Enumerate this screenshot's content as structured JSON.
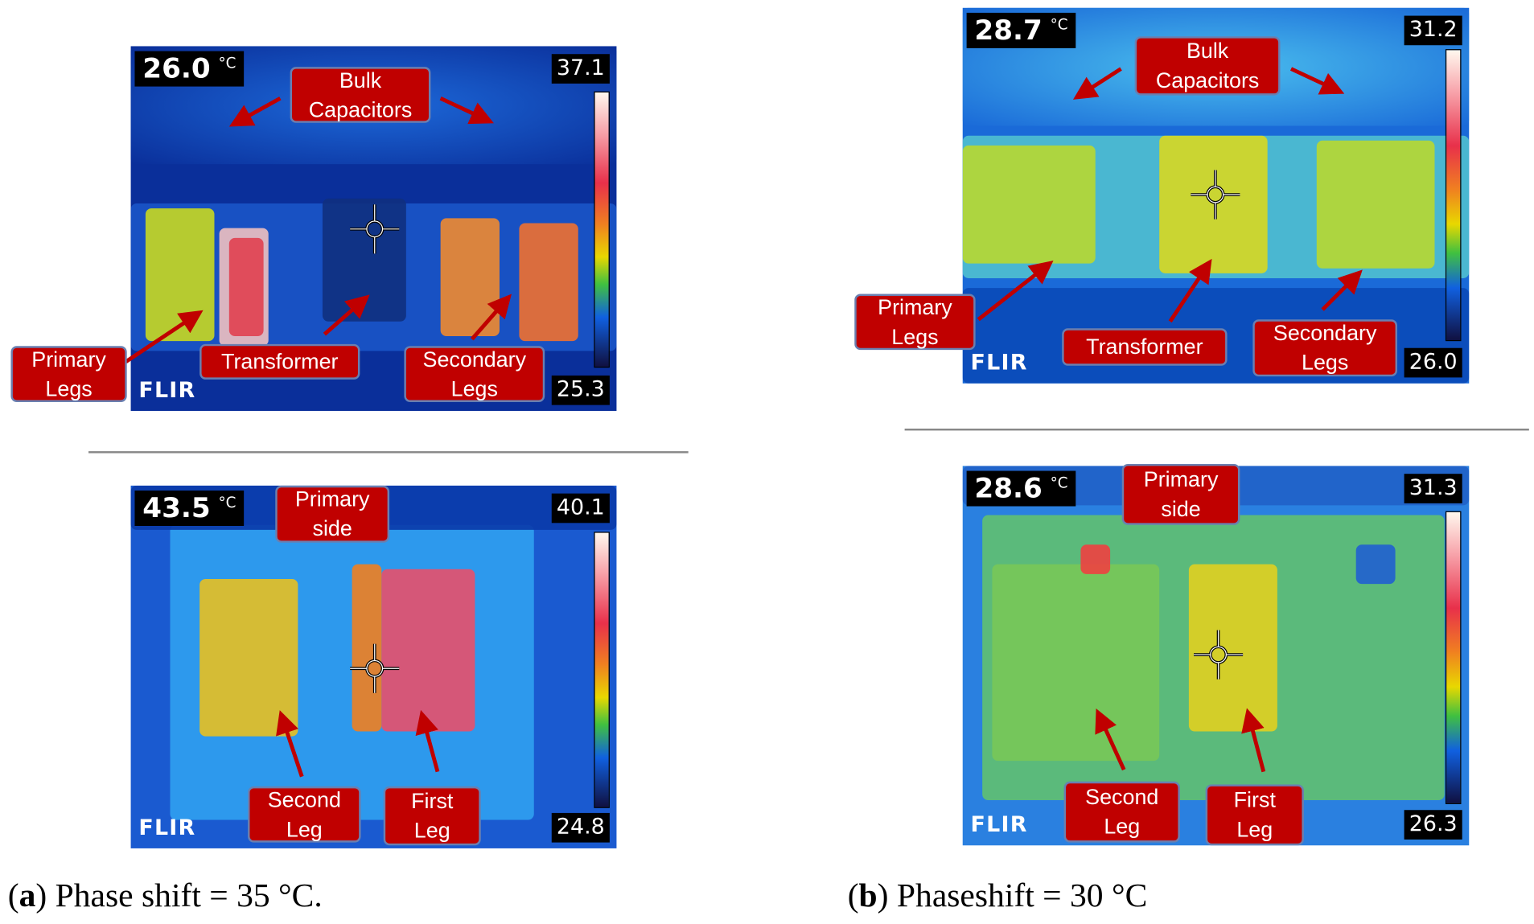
{
  "panels": [
    {
      "spot": "26.0",
      "unit": "°C",
      "max": "37.1",
      "min": "25.3",
      "brand": "FLIR",
      "labels": [
        {
          "lines": [
            "Bulk",
            "Capacitors"
          ]
        },
        {
          "lines": [
            "Primary",
            "Legs"
          ]
        },
        {
          "lines": [
            "Transformer"
          ]
        },
        {
          "lines": [
            "Secondary",
            "Legs"
          ]
        }
      ]
    },
    {
      "spot": "43.5",
      "unit": "°C",
      "max": "40.1",
      "min": "24.8",
      "brand": "FLIR",
      "labels": [
        {
          "lines": [
            "Primary",
            "side"
          ]
        },
        {
          "lines": [
            "Second",
            "Leg"
          ]
        },
        {
          "lines": [
            "First",
            "Leg"
          ]
        }
      ]
    },
    {
      "spot": "28.7",
      "unit": "°C",
      "max": "31.2",
      "min": "26.0",
      "brand": "FLIR",
      "labels": [
        {
          "lines": [
            "Bulk",
            "Capacitors"
          ]
        },
        {
          "lines": [
            "Primary",
            "Legs"
          ]
        },
        {
          "lines": [
            "Transformer"
          ]
        },
        {
          "lines": [
            "Secondary",
            "Legs"
          ]
        }
      ]
    },
    {
      "spot": "28.6",
      "unit": "°C",
      "max": "31.3",
      "min": "26.3",
      "brand": "FLIR",
      "labels": [
        {
          "lines": [
            "Primary",
            "side"
          ]
        },
        {
          "lines": [
            "Second",
            "Leg"
          ]
        },
        {
          "lines": [
            "First",
            "Leg"
          ]
        }
      ]
    }
  ],
  "captions": [
    {
      "prefix": "(",
      "letter": "a",
      "text": ") Phase shift = 35 °C."
    },
    {
      "prefix": "(",
      "letter": "b",
      "text": ") Phaseshift = 30 °C"
    }
  ]
}
